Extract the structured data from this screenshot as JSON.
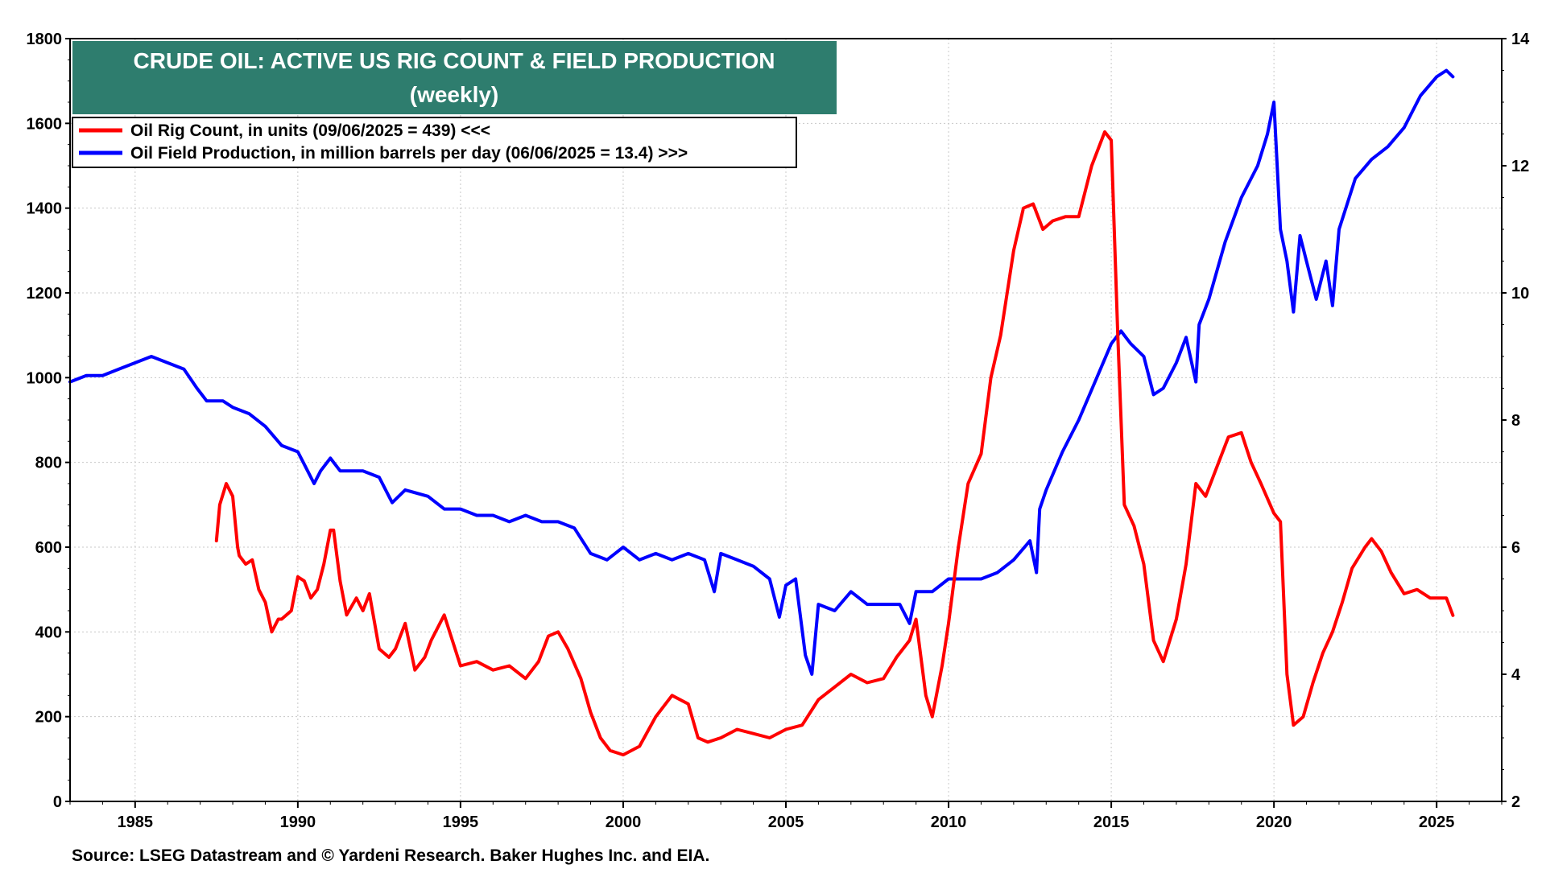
{
  "chart_data": {
    "type": "line",
    "title": "CRUDE OIL: ACTIVE US RIG COUNT & FIELD PRODUCTION",
    "subtitle": "(weekly)",
    "source": "Source: LSEG Datastream and © Yardeni Research. Baker Hughes Inc. and EIA.",
    "xlim": [
      1983,
      2027
    ],
    "x_ticks": [
      1985,
      1990,
      1995,
      2000,
      2005,
      2010,
      2015,
      2020,
      2025
    ],
    "y_left": {
      "lim": [
        0,
        1800
      ],
      "ticks": [
        0,
        200,
        400,
        600,
        800,
        1000,
        1200,
        1400,
        1600,
        1800
      ]
    },
    "y_right": {
      "lim": [
        2,
        14
      ],
      "ticks": [
        2,
        4,
        6,
        8,
        10,
        12,
        14
      ]
    },
    "grid": true,
    "legend_position": "top-left",
    "colors": {
      "rig": "#ff0000",
      "production": "#0000ff",
      "title_bg": "#2e7d6e"
    },
    "series": [
      {
        "name": "Oil Rig Count, in units (09/06/2025 = 439) <<<",
        "axis": "left",
        "x": [
          1987.5,
          1987.6,
          1987.8,
          1988.0,
          1988.15,
          1988.2,
          1988.4,
          1988.6,
          1988.8,
          1989.0,
          1989.2,
          1989.4,
          1989.5,
          1989.8,
          1990.0,
          1990.2,
          1990.4,
          1990.6,
          1990.8,
          1991.0,
          1991.1,
          1991.3,
          1991.5,
          1991.8,
          1992.0,
          1992.2,
          1992.5,
          1992.8,
          1993.0,
          1993.3,
          1993.6,
          1993.9,
          1994.1,
          1994.5,
          1995.0,
          1995.5,
          1996.0,
          1996.5,
          1997.0,
          1997.4,
          1997.7,
          1998.0,
          1998.3,
          1998.7,
          1999.0,
          1999.3,
          1999.6,
          2000.0,
          2000.5,
          2001.0,
          2001.5,
          2002.0,
          2002.3,
          2002.6,
          2003.0,
          2003.5,
          2004.0,
          2004.5,
          2005.0,
          2005.5,
          2006.0,
          2006.5,
          2007.0,
          2007.5,
          2008.0,
          2008.4,
          2008.8,
          2009.0,
          2009.3,
          2009.5,
          2009.8,
          2010.0,
          2010.3,
          2010.6,
          2011.0,
          2011.3,
          2011.6,
          2012.0,
          2012.3,
          2012.6,
          2012.9,
          2013.2,
          2013.6,
          2014.0,
          2014.4,
          2014.8,
          2015.0,
          2015.2,
          2015.4,
          2015.7,
          2016.0,
          2016.3,
          2016.6,
          2017.0,
          2017.3,
          2017.6,
          2017.9,
          2018.2,
          2018.6,
          2019.0,
          2019.3,
          2019.6,
          2020.0,
          2020.2,
          2020.4,
          2020.6,
          2020.9,
          2021.2,
          2021.5,
          2021.8,
          2022.1,
          2022.4,
          2022.8,
          2023.0,
          2023.3,
          2023.6,
          2024.0,
          2024.4,
          2024.8,
          2025.0,
          2025.3,
          2025.5
        ],
        "values": [
          615,
          700,
          750,
          720,
          600,
          580,
          560,
          570,
          500,
          470,
          400,
          430,
          430,
          450,
          530,
          520,
          480,
          500,
          560,
          640,
          640,
          520,
          440,
          480,
          450,
          490,
          360,
          340,
          360,
          420,
          310,
          340,
          380,
          440,
          320,
          330,
          310,
          320,
          290,
          330,
          390,
          400,
          360,
          290,
          210,
          150,
          120,
          110,
          130,
          200,
          250,
          230,
          150,
          140,
          150,
          170,
          160,
          150,
          170,
          180,
          240,
          270,
          300,
          280,
          290,
          340,
          380,
          430,
          250,
          200,
          320,
          420,
          600,
          750,
          820,
          1000,
          1100,
          1300,
          1400,
          1410,
          1350,
          1370,
          1380,
          1380,
          1500,
          1580,
          1560,
          1100,
          700,
          650,
          560,
          380,
          330,
          430,
          560,
          750,
          720,
          780,
          860,
          870,
          800,
          750,
          680,
          660,
          300,
          180,
          200,
          280,
          350,
          400,
          470,
          550,
          600,
          620,
          590,
          540,
          490,
          500,
          480,
          480,
          480,
          439
        ]
      },
      {
        "name": "Oil Field Production, in million barrels per day (06/06/2025 = 13.4) >>>",
        "axis": "right",
        "x": [
          1983.0,
          1983.5,
          1984.0,
          1984.5,
          1985.0,
          1985.5,
          1986.0,
          1986.5,
          1986.9,
          1987.2,
          1987.7,
          1988.0,
          1988.5,
          1989.0,
          1989.5,
          1990.0,
          1990.3,
          1990.5,
          1990.7,
          1991.0,
          1991.3,
          1991.7,
          1992.0,
          1992.5,
          1992.8,
          1992.9,
          1993.3,
          1994.0,
          1994.5,
          1995.0,
          1995.5,
          1996.0,
          1996.5,
          1997.0,
          1997.5,
          1998.0,
          1998.5,
          1999.0,
          1999.5,
          2000.0,
          2000.5,
          2001.0,
          2001.5,
          2002.0,
          2002.5,
          2002.8,
          2003.0,
          2003.5,
          2004.0,
          2004.5,
          2004.8,
          2005.0,
          2005.3,
          2005.6,
          2005.8,
          2006.0,
          2006.5,
          2007.0,
          2007.5,
          2008.0,
          2008.5,
          2008.8,
          2009.0,
          2009.5,
          2010.0,
          2010.5,
          2011.0,
          2011.5,
          2012.0,
          2012.5,
          2012.7,
          2012.8,
          2013.0,
          2013.5,
          2014.0,
          2014.5,
          2015.0,
          2015.3,
          2015.6,
          2016.0,
          2016.3,
          2016.6,
          2017.0,
          2017.3,
          2017.6,
          2017.7,
          2018.0,
          2018.5,
          2019.0,
          2019.5,
          2019.8,
          2020.0,
          2020.2,
          2020.4,
          2020.6,
          2020.8,
          2021.0,
          2021.3,
          2021.6,
          2021.8,
          2022.0,
          2022.5,
          2023.0,
          2023.5,
          2024.0,
          2024.5,
          2025.0,
          2025.3,
          2025.5
        ],
        "values": [
          8.6,
          8.7,
          8.7,
          8.8,
          8.9,
          9.0,
          8.9,
          8.8,
          8.5,
          8.3,
          8.3,
          8.2,
          8.1,
          7.9,
          7.6,
          7.5,
          7.2,
          7.0,
          7.2,
          7.4,
          7.2,
          7.2,
          7.2,
          7.1,
          6.8,
          6.7,
          6.9,
          6.8,
          6.6,
          6.6,
          6.5,
          6.5,
          6.4,
          6.5,
          6.4,
          6.4,
          6.3,
          5.9,
          5.8,
          6.0,
          5.8,
          5.9,
          5.8,
          5.9,
          5.8,
          5.3,
          5.9,
          5.8,
          5.7,
          5.5,
          4.9,
          5.4,
          5.5,
          4.3,
          4.0,
          5.1,
          5.0,
          5.3,
          5.1,
          5.1,
          5.1,
          4.8,
          5.3,
          5.3,
          5.5,
          5.5,
          5.5,
          5.6,
          5.8,
          6.1,
          5.6,
          6.6,
          6.9,
          7.5,
          8.0,
          8.6,
          9.2,
          9.4,
          9.2,
          9.0,
          8.4,
          8.5,
          8.9,
          9.3,
          8.6,
          9.5,
          9.9,
          10.8,
          11.5,
          12.0,
          12.5,
          13.0,
          11.0,
          10.5,
          9.7,
          10.9,
          10.5,
          9.9,
          10.5,
          9.8,
          11.0,
          11.8,
          12.1,
          12.3,
          12.6,
          13.1,
          13.4,
          13.5,
          13.4
        ]
      }
    ]
  }
}
